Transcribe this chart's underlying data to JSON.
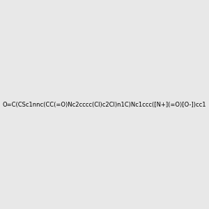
{
  "smiles": "O=C(CSc1nnc(CC(=O)Nc2cccc(Cl)c2Cl)n1C)Nc1ccc([N+](=O)[O-])cc1",
  "image_size": 300,
  "background_color": "#e8e8e8",
  "title": ""
}
